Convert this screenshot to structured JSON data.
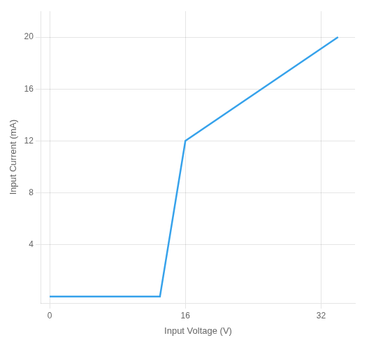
{
  "chart_data": {
    "type": "line",
    "xlabel": "Input Voltage (V)",
    "ylabel": "Input Current (mA)",
    "x": [
      0,
      13,
      16,
      34
    ],
    "values": [
      0,
      0,
      12,
      20
    ],
    "xlim": [
      -1,
      36
    ],
    "ylim": [
      -0.5,
      22
    ],
    "xticks": [
      0,
      16,
      32
    ],
    "yticks": [
      4,
      8,
      12,
      16,
      20
    ],
    "grid": true
  }
}
